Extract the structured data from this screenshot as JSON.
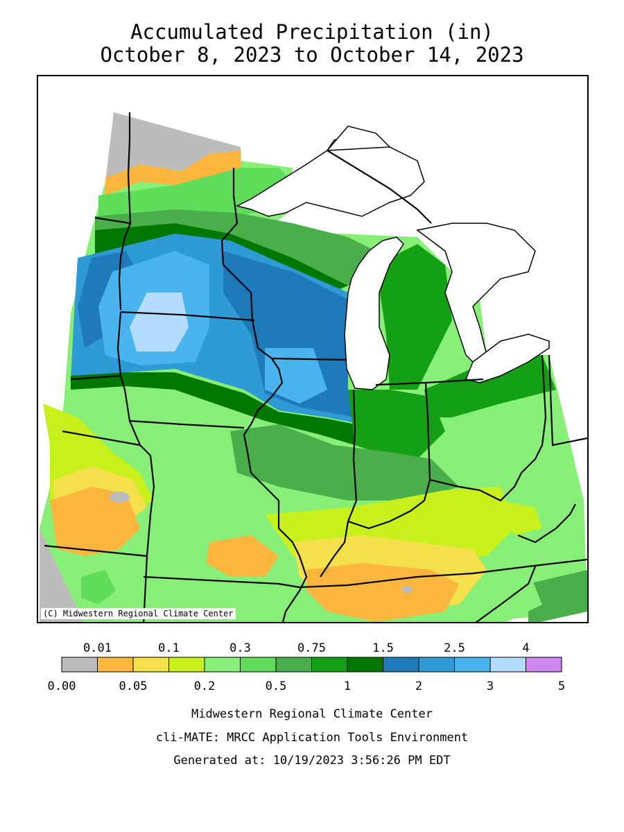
{
  "title": {
    "line1": "Accumulated Precipitation (in)",
    "line2": "October 8, 2023 to October 14, 2023"
  },
  "map": {
    "credit": "(C) Midwestern Regional Climate Center",
    "variable": "precipitation",
    "units": "in"
  },
  "legend": {
    "top_labels": [
      "0.01",
      "0.1",
      "0.3",
      "0.75",
      "1.5",
      "2.5",
      "4"
    ],
    "bottom_labels": [
      "0.00",
      "0.05",
      "0.2",
      "0.5",
      "1",
      "2",
      "3",
      "5"
    ],
    "colors": [
      "#bcbcbc",
      "#fdb63d",
      "#f3e04a",
      "#c8f01c",
      "#87ef78",
      "#5fdc5a",
      "#4aaf4a",
      "#14a014",
      "#007800",
      "#1e7ab8",
      "#2e9ad6",
      "#4ab4ee",
      "#b4dcff",
      "#cc88ee"
    ]
  },
  "palette": {
    "gray": "#bcbcbc",
    "orange": "#fdb63d",
    "yellow": "#f3e04a",
    "yellowgreen": "#c8f01c",
    "lightgreen": "#87ef78",
    "green": "#5fdc5a",
    "midgreen": "#4aaf4a",
    "green2": "#14a014",
    "darkgreen": "#007800",
    "darkblue": "#1e7ab8",
    "blue": "#2e9ad6",
    "lightblue": "#4ab4ee",
    "paleblue": "#b4dcff"
  },
  "footer": {
    "line1": "Midwestern Regional Climate Center",
    "line2": "cli-MATE: MRCC Application Tools Environment",
    "line3": "Generated at: 10/19/2023 3:56:26 PM EDT"
  }
}
